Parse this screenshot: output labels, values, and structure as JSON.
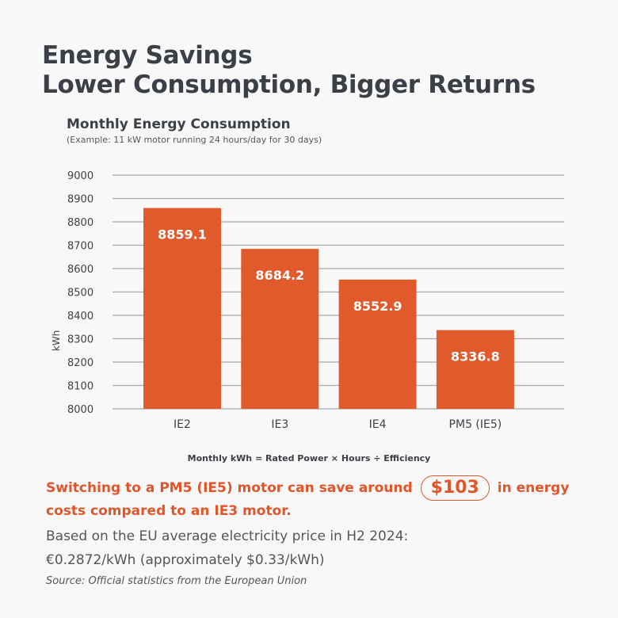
{
  "header": {
    "title_line1": "Energy Savings",
    "title_line2": "Lower Consumption, Bigger Returns"
  },
  "chart_data": {
    "type": "bar",
    "title": "Monthly Energy Consumption",
    "subtitle": "(Example: 11 kW motor running 24 hours/day for 30 days)",
    "categories": [
      "IE2",
      "IE3",
      "IE4",
      "PM5 (IE5)"
    ],
    "values": [
      8859.1,
      8684.2,
      8552.9,
      8336.8
    ],
    "data_labels": [
      "8859.1",
      "8684.2",
      "8552.9",
      "8336.8"
    ],
    "ylabel": "kWh",
    "xlabel": "",
    "ylim": [
      8000,
      9000
    ],
    "yticks": [
      8000,
      8100,
      8200,
      8300,
      8400,
      8500,
      8600,
      8700,
      8800,
      8900,
      9000
    ],
    "grid": true,
    "bar_color": "#e05a2b"
  },
  "footer": {
    "formula": "Monthly kWh = Rated Power × Hours ÷ Efficiency",
    "highlight_before": "Switching to a PM5 (IE5) motor can save around",
    "highlight_value": "$103",
    "highlight_after": "in energy costs compared to an IE3 motor.",
    "basis_line1": "Based on the EU average electricity price in H2 2024:",
    "basis_line2": "€0.2872/kWh (approximately $0.33/kWh)",
    "source": "Source: Official statistics from the European Union",
    "accent_color": "#e0562a"
  }
}
